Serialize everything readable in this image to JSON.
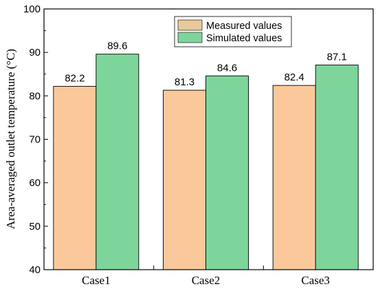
{
  "chart_data": {
    "type": "bar",
    "categories": [
      "Case1",
      "Case2",
      "Case3"
    ],
    "series": [
      {
        "name": "Measured values",
        "values": [
          82.2,
          81.3,
          82.4
        ],
        "color": "#FBC89B",
        "legend_color": "#E8C99A"
      },
      {
        "name": "Simulated values",
        "values": [
          89.6,
          84.6,
          87.1
        ],
        "color": "#7ED59B",
        "legend_color": "#7ED59B"
      }
    ],
    "data_labels": [
      [
        "82.2",
        "81.3",
        "82.4"
      ],
      [
        "89.6",
        "84.6",
        "87.1"
      ]
    ],
    "title": "",
    "xlabel": "",
    "ylabel": "Area-averaged outlet temperature (°C)",
    "ylim": [
      40,
      100
    ],
    "yticks": [
      40,
      50,
      60,
      70,
      80,
      90,
      100
    ],
    "grid": false,
    "legend_position": "top-right"
  }
}
